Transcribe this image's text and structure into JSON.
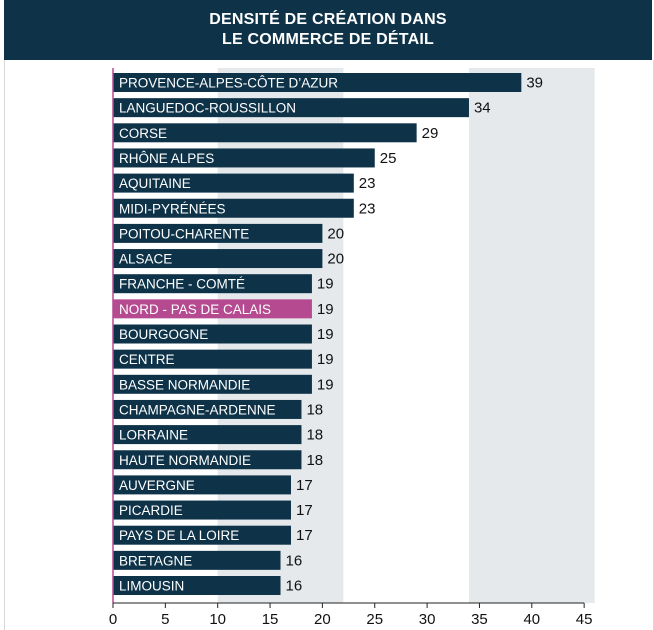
{
  "header": {
    "line1": "DENSITÉ DE CRÉATION DANS",
    "line2": "LE COMMERCE DE DÉTAIL"
  },
  "colors": {
    "header_bg": "#0e3349",
    "bar": "#0e3349",
    "highlight_bar": "#b54a91",
    "band": "#e5e9eb",
    "axis_tick": "#b54a91"
  },
  "chart_data": {
    "type": "bar",
    "orientation": "horizontal",
    "title": "DENSITÉ DE CRÉATION DANS LE COMMERCE DE DÉTAIL",
    "categories": [
      "PROVENCE-ALPES-CÔTE D’AZUR",
      "LANGUEDOC-ROUSSILLON",
      "CORSE",
      "RHÔNE ALPES",
      "AQUITAINE",
      "MIDI-PYRÉNÉES",
      "POITOU-CHARENTE",
      "ALSACE",
      "FRANCHE - COMTÉ",
      "NORD - PAS DE CALAIS",
      "BOURGOGNE",
      "CENTRE",
      "BASSE NORMANDIE",
      "CHAMPAGNE-ARDENNE",
      "LORRAINE",
      "HAUTE NORMANDIE",
      "AUVERGNE",
      "PICARDIE",
      "PAYS DE LA  LOIRE",
      "BRETAGNE",
      "LIMOUSIN"
    ],
    "values": [
      39,
      34,
      29,
      25,
      23,
      23,
      20,
      20,
      19,
      19,
      19,
      19,
      19,
      18,
      18,
      18,
      17,
      17,
      17,
      16,
      16
    ],
    "highlighted_category": "NORD - PAS DE CALAIS",
    "x_ticks": [
      0,
      5,
      10,
      15,
      20,
      25,
      30,
      35,
      40,
      45
    ],
    "xlim": [
      0,
      45
    ],
    "grid": false,
    "legend": "none"
  }
}
